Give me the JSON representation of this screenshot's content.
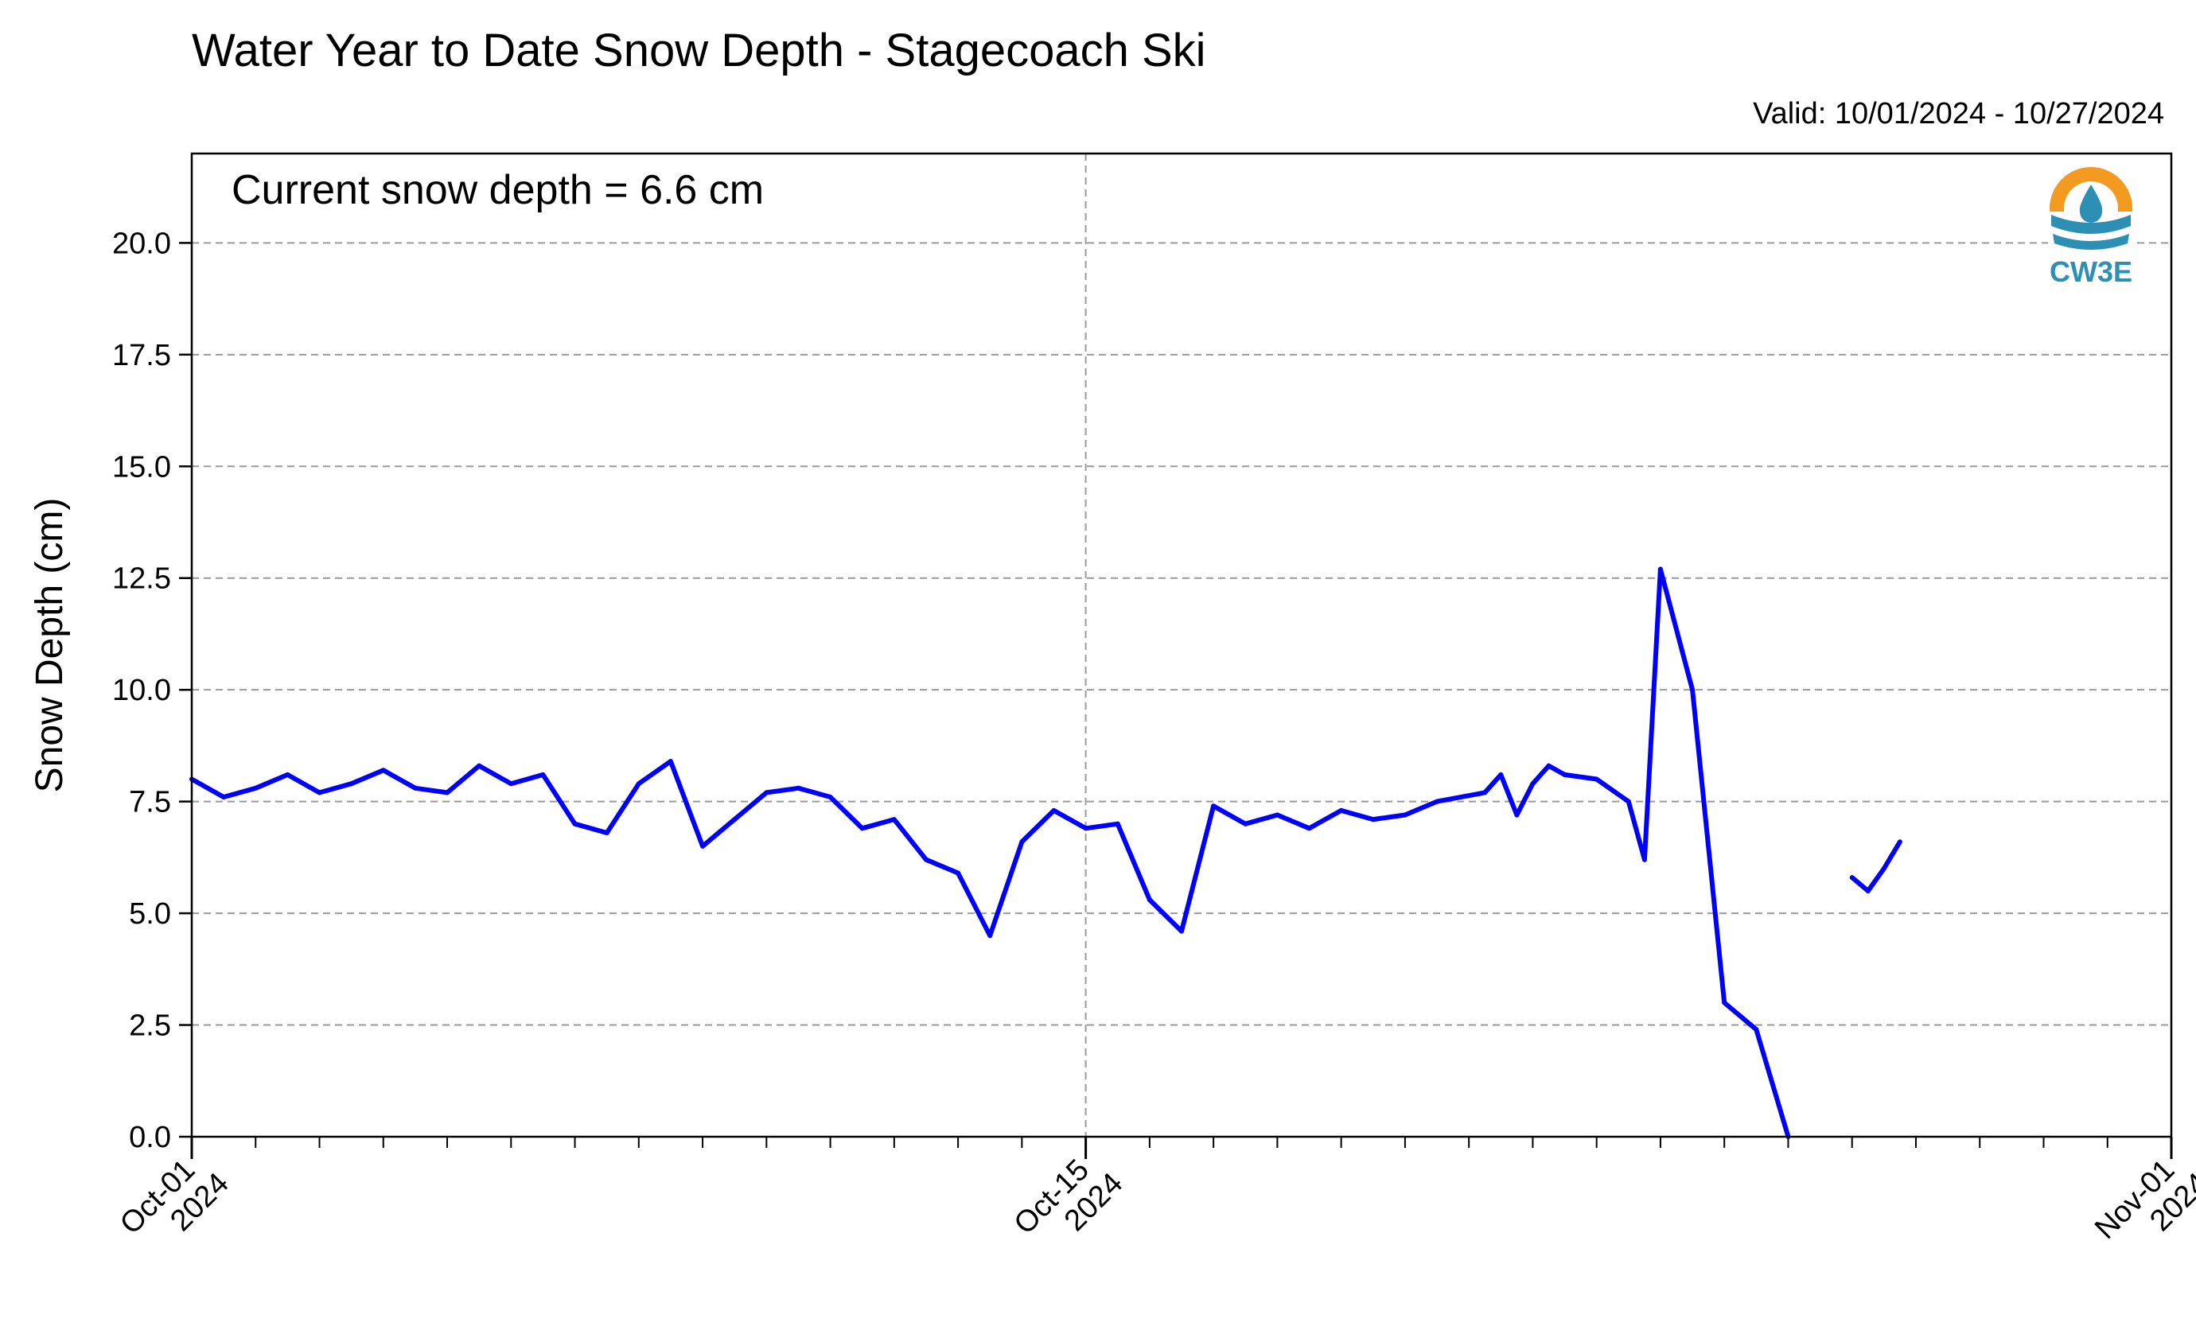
{
  "chart_data": {
    "type": "line",
    "title": "Water Year to Date Snow Depth - Stagecoach Ski",
    "subtitle": "Valid: 10/01/2024 - 10/27/2024",
    "annotation": "Current snow depth = 6.6 cm",
    "ylabel": "Snow Depth (cm)",
    "xlabel": "",
    "ylim": [
      0,
      22
    ],
    "xlim": [
      "2024-10-01",
      "2024-11-01"
    ],
    "y_ticks": [
      "0.0",
      "2.5",
      "5.0",
      "7.5",
      "10.0",
      "12.5",
      "15.0",
      "17.5",
      "20.0"
    ],
    "x_ticks": [
      {
        "date": "2024-10-01",
        "label_line1": "Oct-01",
        "label_line2": "2024"
      },
      {
        "date": "2024-10-15",
        "label_line1": "Oct-15",
        "label_line2": "2024"
      },
      {
        "date": "2024-11-01",
        "label_line1": "Nov-01",
        "label_line2": "2024"
      }
    ],
    "grid": true,
    "series": [
      {
        "color": "#0000ff",
        "x": [
          "2024-10-01 00:00",
          "2024-10-01 12:00",
          "2024-10-02 00:00",
          "2024-10-02 12:00",
          "2024-10-03 00:00",
          "2024-10-03 12:00",
          "2024-10-04 00:00",
          "2024-10-04 12:00",
          "2024-10-05 00:00",
          "2024-10-05 12:00",
          "2024-10-06 00:00",
          "2024-10-06 12:00",
          "2024-10-07 00:00",
          "2024-10-07 12:00",
          "2024-10-08 00:00",
          "2024-10-08 12:00",
          "2024-10-09 00:00",
          "2024-10-09 12:00",
          "2024-10-10 00:00",
          "2024-10-10 12:00",
          "2024-10-11 00:00",
          "2024-10-11 12:00",
          "2024-10-12 00:00",
          "2024-10-12 12:00",
          "2024-10-13 00:00",
          "2024-10-13 12:00",
          "2024-10-14 00:00",
          "2024-10-14 12:00",
          "2024-10-15 00:00",
          "2024-10-15 12:00",
          "2024-10-16 00:00",
          "2024-10-16 12:00",
          "2024-10-17 00:00",
          "2024-10-17 12:00",
          "2024-10-18 00:00",
          "2024-10-18 12:00",
          "2024-10-19 00:00",
          "2024-10-19 12:00",
          "2024-10-20 00:00",
          "2024-10-20 12:00",
          "2024-10-21 06:00",
          "2024-10-21 12:00",
          "2024-10-21 18:00",
          "2024-10-22 00:00",
          "2024-10-22 06:00",
          "2024-10-22 12:00",
          "2024-10-23 00:00",
          "2024-10-23 12:00",
          "2024-10-23 18:00",
          "2024-10-24 00:00",
          "2024-10-24 12:00",
          "2024-10-25 00:00",
          "2024-10-25 12:00",
          "2024-10-26 00:00",
          "2024-10-26 12:00",
          "2024-10-27 00:00",
          "2024-10-27 06:00",
          "2024-10-27 12:00",
          "2024-10-27 18:00"
        ],
        "y": [
          8.0,
          7.6,
          7.8,
          8.1,
          7.7,
          7.9,
          8.2,
          7.8,
          7.7,
          8.3,
          7.9,
          8.1,
          7.0,
          6.8,
          7.9,
          8.4,
          6.5,
          7.1,
          7.7,
          7.8,
          7.6,
          6.9,
          7.1,
          6.2,
          5.9,
          4.5,
          6.6,
          7.3,
          6.9,
          7.0,
          5.3,
          4.6,
          7.4,
          7.0,
          7.2,
          6.9,
          7.3,
          7.1,
          7.2,
          7.5,
          7.7,
          8.1,
          7.2,
          7.9,
          8.3,
          8.1,
          8.0,
          7.5,
          6.2,
          12.7,
          10.0,
          3.0,
          2.4,
          0.0,
          null,
          5.8,
          5.5,
          6.0,
          6.6
        ]
      }
    ]
  },
  "logo": {
    "text": "CW3E",
    "accent": "#f39a21",
    "brand": "#2d8fb3"
  }
}
